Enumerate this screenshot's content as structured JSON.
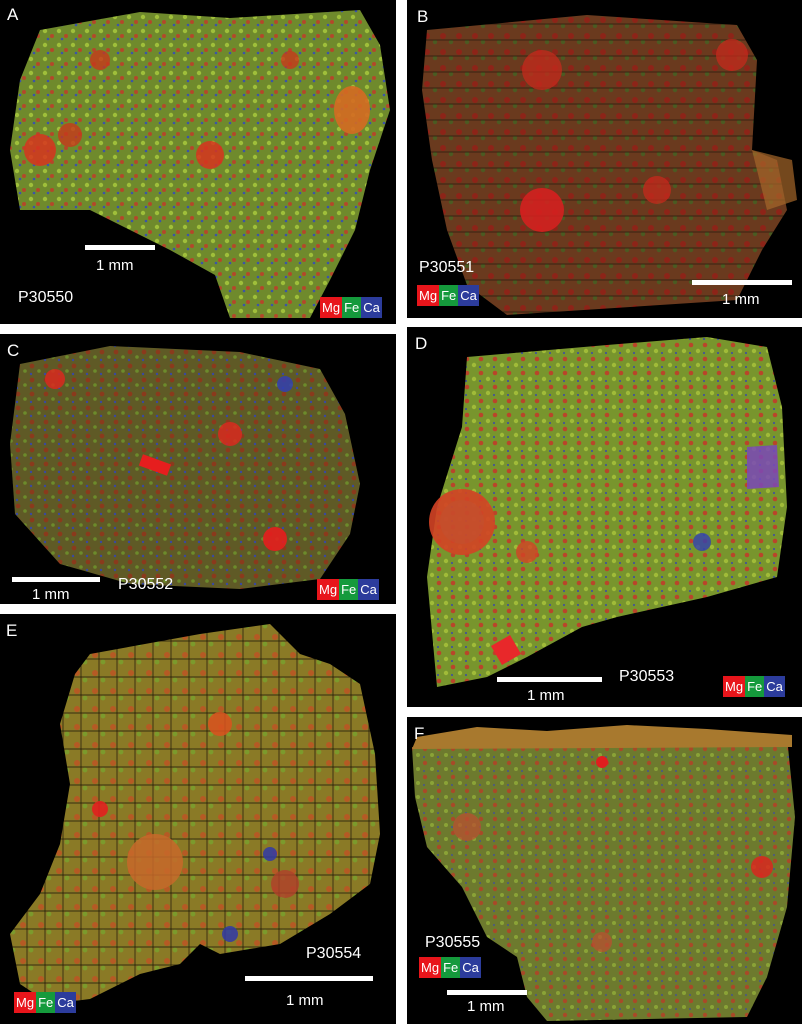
{
  "panels": [
    {
      "label": "A",
      "sample": "P30550",
      "scale": "1 mm"
    },
    {
      "label": "B",
      "sample": "P30551",
      "scale": "1 mm"
    },
    {
      "label": "C",
      "sample": "P30552",
      "scale": "1 mm"
    },
    {
      "label": "D",
      "sample": "P30553",
      "scale": "1 mm"
    },
    {
      "label": "E",
      "sample": "P30554",
      "scale": "1 mm"
    },
    {
      "label": "F",
      "sample": "P30555",
      "scale": "1 mm"
    }
  ],
  "legend": {
    "mg": "Mg",
    "fe": "Fe",
    "ca": "Ca"
  },
  "colors": {
    "mg": "#e8151b",
    "fe": "#159a3c",
    "ca": "#2c3c9c",
    "matrix": "#7a8a30",
    "background": "#000000"
  }
}
